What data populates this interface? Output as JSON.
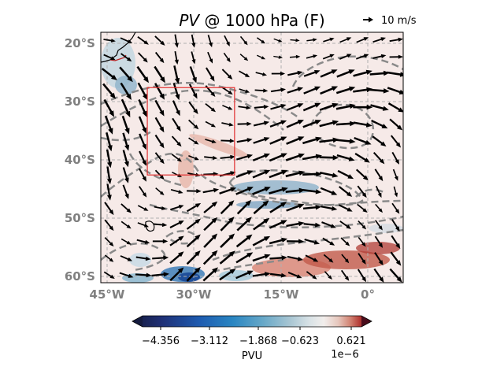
{
  "title": {
    "italic": "PV",
    "rest": " @ 1000 hPa (F)"
  },
  "quiver_key": {
    "label": "10 m/s"
  },
  "map": {
    "lat_labels": [
      "20°S",
      "30°S",
      "40°S",
      "50°S",
      "60°S"
    ],
    "lon_labels": [
      "45°W",
      "30°W",
      "15°W",
      "0°"
    ],
    "lon_range_deg": [
      -46,
      6
    ],
    "lat_range_deg": [
      -61,
      -18
    ],
    "highlight_box": {
      "lon": [
        -38,
        -23
      ],
      "lat": [
        -42.5,
        -27.5
      ],
      "color": "#e03030"
    }
  },
  "colorbar": {
    "label": "PVU",
    "tick_labels": [
      "−4.356",
      "−3.112",
      "−1.868",
      "−0.623",
      "0.621"
    ],
    "multiplier": "1e−6",
    "colormap": "RdBu_r"
  },
  "colors": {
    "contour": "#8a8a8a",
    "arrow": "#000000",
    "grid": "#b0b0b0",
    "map_background": "#f6eae8"
  }
}
